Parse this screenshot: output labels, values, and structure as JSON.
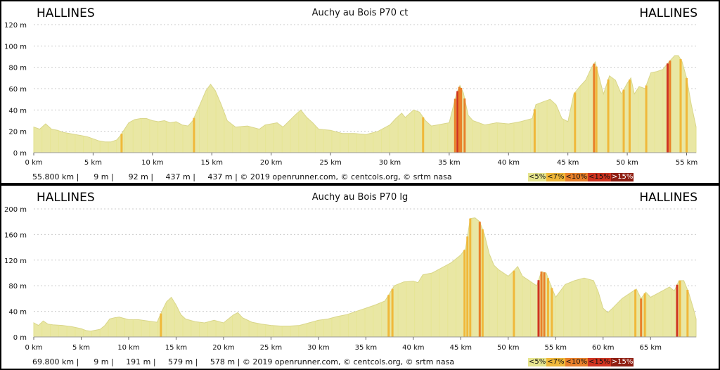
{
  "chart_data": [
    {
      "type": "area",
      "title": "Auchy au Bois P70 ct",
      "start_place": "HALLINES",
      "end_place": "HALLINES",
      "xlim": [
        0,
        55.8
      ],
      "ylim": [
        0,
        120
      ],
      "x_ticks": [
        0,
        5,
        10,
        15,
        20,
        25,
        30,
        35,
        40,
        45,
        50,
        55
      ],
      "x_tick_labels": [
        "0 km",
        "5 km",
        "10 km",
        "15 km",
        "20 km",
        "25 km",
        "30 km",
        "35 km",
        "40 km",
        "45 km",
        "50 km",
        "55 km"
      ],
      "y_ticks": [
        0,
        20,
        40,
        60,
        80,
        100,
        120
      ],
      "y_tick_labels": [
        "0 m",
        "20 m",
        "40 m",
        "60 m",
        "80 m",
        "100 m",
        "120 m"
      ],
      "profile": [
        [
          0,
          24
        ],
        [
          0.5,
          22
        ],
        [
          1,
          27
        ],
        [
          1.5,
          22
        ],
        [
          2,
          21
        ],
        [
          2.5,
          19
        ],
        [
          3,
          18
        ],
        [
          3.5,
          17
        ],
        [
          4,
          16
        ],
        [
          4.5,
          15
        ],
        [
          5,
          13
        ],
        [
          5.5,
          11
        ],
        [
          6,
          10
        ],
        [
          6.5,
          10
        ],
        [
          7,
          12
        ],
        [
          7.3,
          16
        ],
        [
          8,
          28
        ],
        [
          8.5,
          31
        ],
        [
          9,
          32
        ],
        [
          9.5,
          32
        ],
        [
          10,
          30
        ],
        [
          10.5,
          29
        ],
        [
          11,
          30
        ],
        [
          11.5,
          28
        ],
        [
          12,
          29
        ],
        [
          12.5,
          26
        ],
        [
          13,
          25
        ],
        [
          13.4,
          30
        ],
        [
          14,
          45
        ],
        [
          14.5,
          58
        ],
        [
          14.9,
          64
        ],
        [
          15.3,
          58
        ],
        [
          15.8,
          45
        ],
        [
          16.3,
          30
        ],
        [
          17,
          24
        ],
        [
          18,
          25
        ],
        [
          19,
          22
        ],
        [
          19.5,
          26
        ],
        [
          20,
          27
        ],
        [
          20.5,
          28
        ],
        [
          21,
          24
        ],
        [
          22,
          35
        ],
        [
          22.5,
          40
        ],
        [
          23,
          33
        ],
        [
          23.5,
          28
        ],
        [
          24,
          22
        ],
        [
          25,
          21
        ],
        [
          26,
          18
        ],
        [
          27,
          18
        ],
        [
          28,
          17
        ],
        [
          29,
          20
        ],
        [
          30,
          26
        ],
        [
          30.5,
          32
        ],
        [
          31,
          37
        ],
        [
          31.3,
          33
        ],
        [
          31.7,
          37
        ],
        [
          32,
          40
        ],
        [
          32.5,
          38
        ],
        [
          33,
          30
        ],
        [
          33.5,
          25
        ],
        [
          34,
          26
        ],
        [
          35,
          28
        ],
        [
          35.6,
          55
        ],
        [
          35.9,
          63
        ],
        [
          36.2,
          56
        ],
        [
          36.6,
          35
        ],
        [
          37,
          30
        ],
        [
          38,
          26
        ],
        [
          39,
          28
        ],
        [
          40,
          27
        ],
        [
          41,
          29
        ],
        [
          42,
          32
        ],
        [
          42.3,
          45
        ],
        [
          43,
          48
        ],
        [
          43.5,
          50
        ],
        [
          44,
          45
        ],
        [
          44.5,
          32
        ],
        [
          45,
          29
        ],
        [
          45.5,
          55
        ],
        [
          46,
          62
        ],
        [
          46.5,
          68
        ],
        [
          47,
          80
        ],
        [
          47.3,
          85
        ],
        [
          47.6,
          72
        ],
        [
          48,
          55
        ],
        [
          48.5,
          72
        ],
        [
          49,
          68
        ],
        [
          49.5,
          55
        ],
        [
          50,
          65
        ],
        [
          50.3,
          70
        ],
        [
          50.6,
          55
        ],
        [
          51,
          62
        ],
        [
          51.5,
          60
        ],
        [
          52,
          75
        ],
        [
          52.5,
          76
        ],
        [
          53,
          78
        ],
        [
          53.5,
          85
        ],
        [
          54,
          91
        ],
        [
          54.3,
          91
        ],
        [
          54.6,
          86
        ],
        [
          55,
          70
        ],
        [
          55.4,
          45
        ],
        [
          55.8,
          24
        ]
      ],
      "grade_bars": [
        [
          7.4,
          "c7"
        ],
        [
          13.5,
          "c7"
        ],
        [
          32.8,
          "c7"
        ],
        [
          35.5,
          "c10"
        ],
        [
          35.7,
          "c15"
        ],
        [
          35.85,
          "c10"
        ],
        [
          36.0,
          "c10"
        ],
        [
          36.3,
          "c10"
        ],
        [
          42.2,
          "c7"
        ],
        [
          45.6,
          "c7"
        ],
        [
          47.2,
          "c10"
        ],
        [
          47.4,
          "c7"
        ],
        [
          48.4,
          "c7"
        ],
        [
          49.7,
          "c7"
        ],
        [
          50.2,
          "c7"
        ],
        [
          51.6,
          "c7"
        ],
        [
          53.4,
          "c15"
        ],
        [
          53.6,
          "c10"
        ],
        [
          54.5,
          "c7"
        ],
        [
          55.0,
          "c7"
        ]
      ],
      "stats": "55.800 km |      9 m |      92 m |     437 m |     437 m | © 2019 openrunner.com, © centcols.org, © srtm nasa",
      "legend": [
        "<5%",
        "<7%",
        "<10%",
        "<15%",
        ">15%"
      ]
    },
    {
      "type": "area",
      "title": "Auchy au Bois P70 lg",
      "start_place": "HALLINES",
      "end_place": "HALLINES",
      "xlim": [
        0,
        69.8
      ],
      "ylim": [
        0,
        200
      ],
      "x_ticks": [
        0,
        5,
        10,
        15,
        20,
        25,
        30,
        35,
        40,
        45,
        50,
        55,
        60,
        65
      ],
      "x_tick_labels": [
        "0 km",
        "5 km",
        "10 km",
        "15 km",
        "20 km",
        "25 km",
        "30 km",
        "35 km",
        "40 km",
        "45 km",
        "50 km",
        "55 km",
        "60 km",
        "65 km"
      ],
      "y_ticks": [
        0,
        40,
        80,
        120,
        160,
        200
      ],
      "y_tick_labels": [
        "0 m",
        "40 m",
        "80 m",
        "120 m",
        "160 m",
        "200 m"
      ],
      "profile": [
        [
          0,
          22
        ],
        [
          0.5,
          18
        ],
        [
          1,
          25
        ],
        [
          1.5,
          20
        ],
        [
          2,
          19
        ],
        [
          3,
          18
        ],
        [
          4,
          16
        ],
        [
          5,
          13
        ],
        [
          5.5,
          10
        ],
        [
          6,
          9
        ],
        [
          7,
          12
        ],
        [
          7.5,
          18
        ],
        [
          8,
          28
        ],
        [
          8.5,
          30
        ],
        [
          9,
          31
        ],
        [
          10,
          27
        ],
        [
          11,
          27
        ],
        [
          12,
          25
        ],
        [
          13,
          23
        ],
        [
          13.5,
          40
        ],
        [
          14,
          55
        ],
        [
          14.5,
          62
        ],
        [
          15,
          50
        ],
        [
          15.5,
          35
        ],
        [
          16,
          28
        ],
        [
          17,
          24
        ],
        [
          18,
          22
        ],
        [
          19,
          26
        ],
        [
          20,
          22
        ],
        [
          21,
          34
        ],
        [
          21.5,
          38
        ],
        [
          22,
          30
        ],
        [
          23,
          23
        ],
        [
          24,
          20
        ],
        [
          25,
          18
        ],
        [
          26,
          17
        ],
        [
          27,
          17
        ],
        [
          28,
          18
        ],
        [
          29,
          22
        ],
        [
          30,
          26
        ],
        [
          31,
          28
        ],
        [
          32,
          32
        ],
        [
          33,
          35
        ],
        [
          34,
          40
        ],
        [
          35,
          45
        ],
        [
          36,
          50
        ],
        [
          37,
          56
        ],
        [
          37.5,
          68
        ],
        [
          38,
          80
        ],
        [
          39,
          86
        ],
        [
          40,
          87
        ],
        [
          40.5,
          85
        ],
        [
          41,
          97
        ],
        [
          42,
          100
        ],
        [
          43,
          108
        ],
        [
          44,
          116
        ],
        [
          45,
          128
        ],
        [
          45.5,
          138
        ],
        [
          46,
          185
        ],
        [
          46.5,
          186
        ],
        [
          47,
          180
        ],
        [
          47.5,
          160
        ],
        [
          48,
          130
        ],
        [
          48.5,
          112
        ],
        [
          49,
          105
        ],
        [
          50,
          95
        ],
        [
          50.5,
          102
        ],
        [
          51,
          110
        ],
        [
          51.5,
          95
        ],
        [
          52,
          90
        ],
        [
          53,
          80
        ],
        [
          53.5,
          102
        ],
        [
          54,
          100
        ],
        [
          54.5,
          80
        ],
        [
          55,
          62
        ],
        [
          56,
          82
        ],
        [
          57,
          88
        ],
        [
          58,
          92
        ],
        [
          59,
          88
        ],
        [
          59.5,
          70
        ],
        [
          60,
          45
        ],
        [
          60.5,
          38
        ],
        [
          61,
          45
        ],
        [
          62,
          60
        ],
        [
          63,
          70
        ],
        [
          63.5,
          75
        ],
        [
          64,
          60
        ],
        [
          64.5,
          70
        ],
        [
          65,
          62
        ],
        [
          66,
          70
        ],
        [
          67,
          78
        ],
        [
          67.5,
          72
        ],
        [
          68,
          88
        ],
        [
          68.5,
          88
        ],
        [
          69,
          70
        ],
        [
          69.5,
          45
        ],
        [
          69.8,
          28
        ]
      ],
      "grade_bars": [
        [
          13.4,
          "c7"
        ],
        [
          37.4,
          "c7"
        ],
        [
          37.8,
          "c7"
        ],
        [
          45.4,
          "c7"
        ],
        [
          45.7,
          "c7"
        ],
        [
          46.0,
          "c7"
        ],
        [
          47.0,
          "c10"
        ],
        [
          47.3,
          "c7"
        ],
        [
          50.6,
          "c7"
        ],
        [
          53.2,
          "c15"
        ],
        [
          53.5,
          "c10"
        ],
        [
          53.8,
          "c10"
        ],
        [
          54.2,
          "c7"
        ],
        [
          54.6,
          "c7"
        ],
        [
          63.4,
          "c7"
        ],
        [
          64.0,
          "c10"
        ],
        [
          64.4,
          "c7"
        ],
        [
          67.8,
          "c15"
        ],
        [
          68.1,
          "c7"
        ],
        [
          68.9,
          "c7"
        ]
      ],
      "stats": "69.800 km |      9 m |     191 m |     579 m |     578 m | © 2019 openrunner.com, © centcols.org, © srtm nasa",
      "legend": [
        "<5%",
        "<7%",
        "<10%",
        "<15%",
        ">15%"
      ]
    }
  ],
  "colors": {
    "area": "#e9e7a4",
    "area_stroke": "#d9d68a",
    "c5": "#e6e58e",
    "c7": "#f0b83a",
    "c10": "#e9802a",
    "c15": "#cf3320",
    "c20": "#8f1e12",
    "grid": "#cccccc"
  }
}
